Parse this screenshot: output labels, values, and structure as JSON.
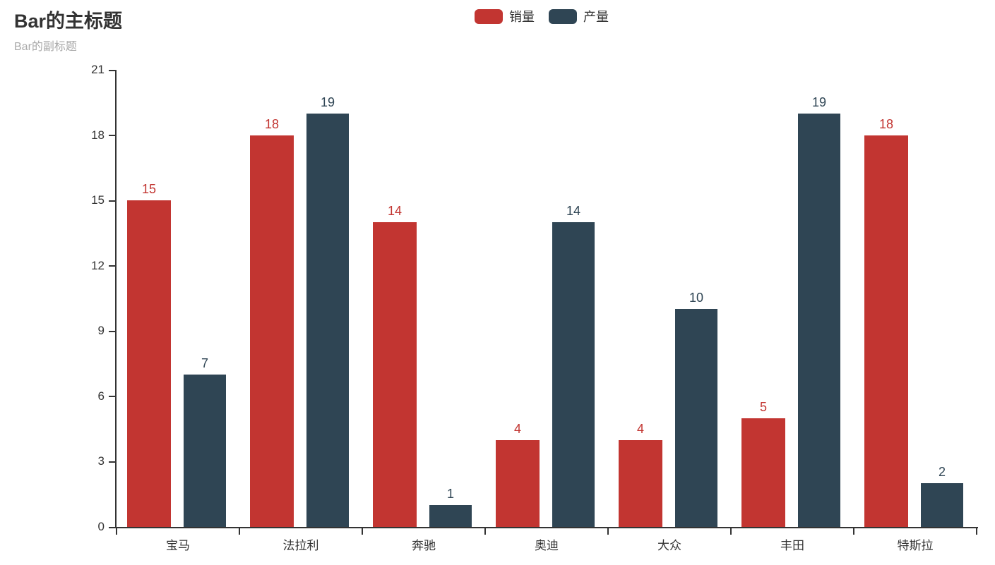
{
  "title": {
    "text": "Bar的主标题",
    "subtext": "Bar的副标题"
  },
  "chart_data": {
    "type": "bar",
    "title": "Bar的主标题",
    "subtitle": "Bar的副标题",
    "categories": [
      "宝马",
      "法拉利",
      "奔驰",
      "奥迪",
      "大众",
      "丰田",
      "特斯拉"
    ],
    "series": [
      {
        "name": "销量",
        "color": "#c23531",
        "values": [
          15,
          18,
          14,
          4,
          4,
          5,
          18
        ]
      },
      {
        "name": "产量",
        "color": "#2f4554",
        "values": [
          7,
          19,
          1,
          14,
          10,
          19,
          2
        ]
      }
    ],
    "xlabel": "",
    "ylabel": "",
    "ylim": [
      0,
      21
    ],
    "y_ticks": [
      0,
      3,
      6,
      9,
      12,
      15,
      18,
      21
    ],
    "grid": false,
    "legend_position": "top-center",
    "value_labels": true,
    "axis_color": "#333333",
    "label_color": "#333333",
    "subtitle_color": "#aaaaaa",
    "background_color": "#ffffff"
  }
}
